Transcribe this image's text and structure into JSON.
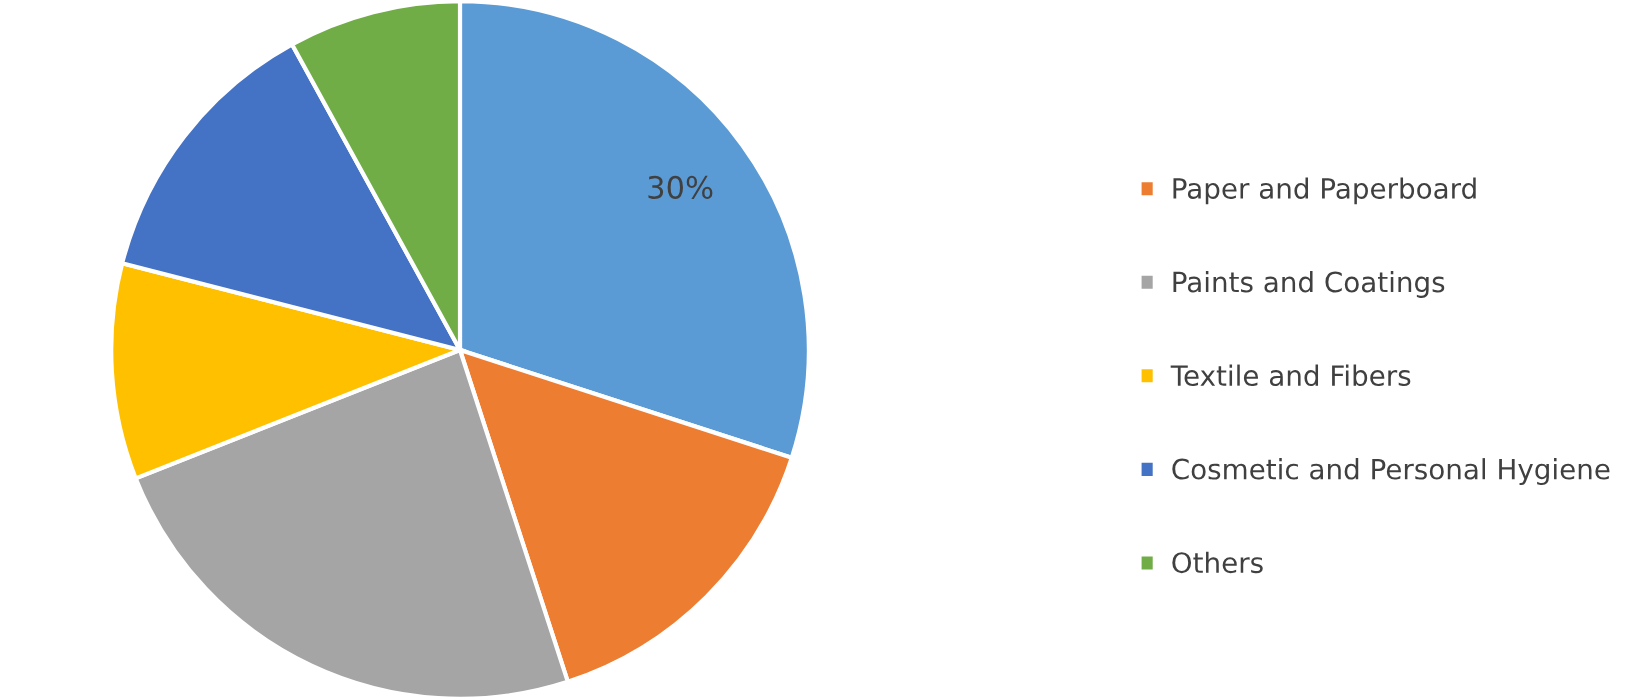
{
  "chart_data": {
    "type": "pie",
    "categories": [
      null,
      "Paper and Paperboard",
      "Paints and Coatings",
      "Textile and Fibers",
      "Cosmetic and Personal Hygiene",
      "Others"
    ],
    "values": [
      30,
      15,
      24,
      10,
      13,
      8
    ],
    "colors": [
      "#5b9bd5",
      "#ed7d31",
      "#a5a5a5",
      "#ffc000",
      "#4472c4",
      "#70ad47"
    ],
    "value_labels": [
      "30%",
      null,
      null,
      null,
      null,
      null
    ],
    "legend": "right"
  }
}
